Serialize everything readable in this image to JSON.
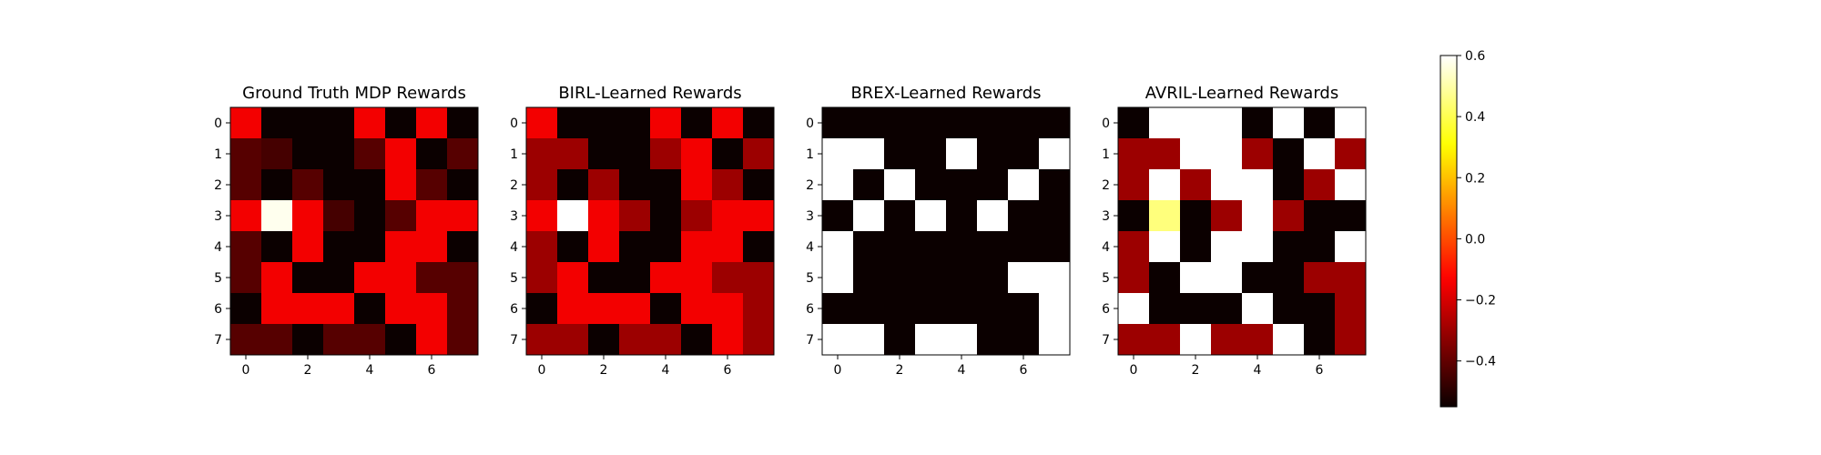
{
  "chart_data": [
    {
      "type": "heatmap",
      "title": "Ground Truth MDP Rewards",
      "x": [
        0,
        1,
        2,
        3,
        4,
        5,
        6,
        7
      ],
      "y": [
        0,
        1,
        2,
        3,
        4,
        5,
        6,
        7
      ],
      "xticks": [
        "0",
        "2",
        "4",
        "6"
      ],
      "yticks": [
        "0",
        "1",
        "2",
        "3",
        "4",
        "5",
        "6",
        "7"
      ],
      "z": [
        [
          -0.15,
          -0.55,
          -0.55,
          -0.55,
          -0.15,
          -0.55,
          -0.15,
          -0.55
        ],
        [
          -0.42,
          -0.45,
          -0.55,
          -0.55,
          -0.42,
          -0.15,
          -0.55,
          -0.42
        ],
        [
          -0.42,
          -0.55,
          -0.42,
          -0.55,
          -0.55,
          -0.15,
          -0.42,
          -0.55
        ],
        [
          -0.15,
          0.58,
          -0.15,
          -0.45,
          -0.55,
          -0.42,
          -0.15,
          -0.15
        ],
        [
          -0.42,
          -0.55,
          -0.15,
          -0.55,
          -0.55,
          -0.15,
          -0.15,
          -0.55
        ],
        [
          -0.42,
          -0.15,
          -0.55,
          -0.55,
          -0.15,
          -0.15,
          -0.42,
          -0.42
        ],
        [
          -0.55,
          -0.15,
          -0.15,
          -0.15,
          -0.55,
          -0.15,
          -0.15,
          -0.42
        ],
        [
          -0.42,
          -0.42,
          -0.55,
          -0.42,
          -0.42,
          -0.55,
          -0.15,
          -0.42
        ]
      ]
    },
    {
      "type": "heatmap",
      "title": "BIRL-Learned Rewards",
      "x": [
        0,
        1,
        2,
        3,
        4,
        5,
        6,
        7
      ],
      "y": [
        0,
        1,
        2,
        3,
        4,
        5,
        6,
        7
      ],
      "xticks": [
        "0",
        "2",
        "4",
        "6"
      ],
      "yticks": [
        "0",
        "1",
        "2",
        "3",
        "4",
        "5",
        "6",
        "7"
      ],
      "z": [
        [
          -0.15,
          -0.55,
          -0.55,
          -0.55,
          -0.15,
          -0.55,
          -0.15,
          -0.55
        ],
        [
          -0.3,
          -0.3,
          -0.55,
          -0.55,
          -0.3,
          -0.15,
          -0.55,
          -0.3
        ],
        [
          -0.3,
          -0.55,
          -0.3,
          -0.55,
          -0.55,
          -0.15,
          -0.3,
          -0.55
        ],
        [
          -0.15,
          0.6,
          -0.15,
          -0.3,
          -0.55,
          -0.3,
          -0.15,
          -0.15
        ],
        [
          -0.3,
          -0.55,
          -0.15,
          -0.55,
          -0.55,
          -0.15,
          -0.15,
          -0.55
        ],
        [
          -0.3,
          -0.15,
          -0.55,
          -0.55,
          -0.15,
          -0.15,
          -0.3,
          -0.3
        ],
        [
          -0.55,
          -0.15,
          -0.15,
          -0.15,
          -0.55,
          -0.15,
          -0.15,
          -0.3
        ],
        [
          -0.3,
          -0.3,
          -0.55,
          -0.3,
          -0.3,
          -0.55,
          -0.15,
          -0.3
        ]
      ]
    },
    {
      "type": "heatmap",
      "title": "BREX-Learned Rewards",
      "x": [
        0,
        1,
        2,
        3,
        4,
        5,
        6,
        7
      ],
      "y": [
        0,
        1,
        2,
        3,
        4,
        5,
        6,
        7
      ],
      "xticks": [
        "0",
        "2",
        "4",
        "6"
      ],
      "yticks": [
        "0",
        "1",
        "2",
        "3",
        "4",
        "5",
        "6",
        "7"
      ],
      "z": [
        [
          -0.55,
          -0.55,
          -0.55,
          -0.55,
          -0.55,
          -0.55,
          -0.55,
          -0.55
        ],
        [
          0.6,
          0.6,
          -0.55,
          -0.55,
          0.6,
          -0.55,
          -0.55,
          0.6
        ],
        [
          0.6,
          -0.55,
          0.6,
          -0.55,
          -0.55,
          -0.55,
          0.6,
          -0.55
        ],
        [
          -0.55,
          0.6,
          -0.55,
          0.6,
          -0.55,
          0.6,
          -0.55,
          -0.55
        ],
        [
          0.6,
          -0.55,
          -0.55,
          -0.55,
          -0.55,
          -0.55,
          -0.55,
          -0.55
        ],
        [
          0.6,
          -0.55,
          -0.55,
          -0.55,
          -0.55,
          -0.55,
          0.6,
          0.6
        ],
        [
          -0.55,
          -0.55,
          -0.55,
          -0.55,
          -0.55,
          -0.55,
          -0.55,
          0.6
        ],
        [
          0.6,
          0.6,
          -0.55,
          0.6,
          0.6,
          -0.55,
          -0.55,
          0.6
        ]
      ]
    },
    {
      "type": "heatmap",
      "title": "AVRIL-Learned Rewards",
      "x": [
        0,
        1,
        2,
        3,
        4,
        5,
        6,
        7
      ],
      "y": [
        0,
        1,
        2,
        3,
        4,
        5,
        6,
        7
      ],
      "xticks": [
        "0",
        "2",
        "4",
        "6"
      ],
      "yticks": [
        "0",
        "1",
        "2",
        "3",
        "4",
        "5",
        "6",
        "7"
      ],
      "z": [
        [
          -0.55,
          0.6,
          0.6,
          0.6,
          -0.55,
          0.6,
          -0.55,
          0.6
        ],
        [
          -0.3,
          -0.3,
          0.6,
          0.6,
          -0.3,
          -0.55,
          0.6,
          -0.3
        ],
        [
          -0.3,
          0.6,
          -0.3,
          0.6,
          0.6,
          -0.55,
          -0.3,
          0.6
        ],
        [
          -0.55,
          0.45,
          -0.55,
          -0.3,
          0.6,
          -0.3,
          -0.55,
          -0.55
        ],
        [
          -0.3,
          0.6,
          -0.55,
          0.6,
          0.6,
          -0.55,
          -0.55,
          0.6
        ],
        [
          -0.3,
          -0.55,
          0.6,
          0.6,
          -0.55,
          -0.55,
          -0.3,
          -0.3
        ],
        [
          0.6,
          -0.55,
          -0.55,
          -0.55,
          0.6,
          -0.55,
          -0.55,
          -0.3
        ],
        [
          -0.3,
          -0.3,
          0.6,
          -0.3,
          -0.3,
          0.6,
          -0.55,
          -0.3
        ]
      ]
    }
  ],
  "colorbar": {
    "colormap": "hot",
    "vmin": -0.55,
    "vmax": 0.6,
    "ticks": [
      -0.4,
      -0.2,
      0.0,
      0.2,
      0.4,
      0.6
    ],
    "tick_labels": [
      "−0.4",
      "−0.2",
      "0.0",
      "0.2",
      "0.4",
      "0.6"
    ]
  }
}
